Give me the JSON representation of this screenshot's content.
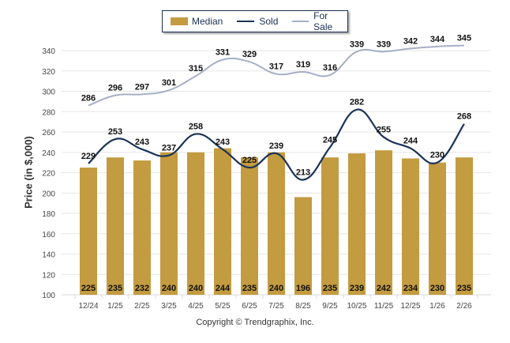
{
  "chart_data": {
    "type": "bar",
    "title": "",
    "xlabel": "",
    "ylabel": "Price (in $,000)",
    "ylim": [
      100,
      340
    ],
    "yticks": [
      100,
      120,
      140,
      160,
      180,
      200,
      220,
      240,
      260,
      280,
      300,
      320,
      340
    ],
    "grid": true,
    "legend_position": "top-center",
    "categories": [
      "12/24",
      "1/25",
      "2/25",
      "3/25",
      "4/25",
      "5/25",
      "6/25",
      "7/25",
      "8/25",
      "9/25",
      "10/25",
      "11/25",
      "12/25",
      "1/26",
      "2/26"
    ],
    "series": [
      {
        "name": "Median",
        "kind": "bar",
        "color": "#C39B40",
        "values": [
          225,
          235,
          232,
          240,
          240,
          244,
          235,
          240,
          196,
          235,
          239,
          242,
          234,
          230,
          235
        ]
      },
      {
        "name": "Sold",
        "kind": "line",
        "color": "#1B3358",
        "values": [
          229,
          253,
          243,
          237,
          258,
          243,
          225,
          239,
          213,
          245,
          282,
          255,
          244,
          230,
          268
        ]
      },
      {
        "name": "For Sale",
        "kind": "line",
        "color": "#A6AFC8",
        "values": [
          286,
          296,
          297,
          301,
          315,
          331,
          329,
          317,
          319,
          316,
          339,
          339,
          342,
          344,
          345
        ]
      }
    ]
  },
  "legend": {
    "median_label": "Median",
    "sold_label": "Sold",
    "for_sale_label": "For Sale"
  },
  "axis": {
    "ylabel": "Price (in $,000)"
  },
  "footer": {
    "copyright": "Copyright © Trendgraphix, Inc."
  }
}
